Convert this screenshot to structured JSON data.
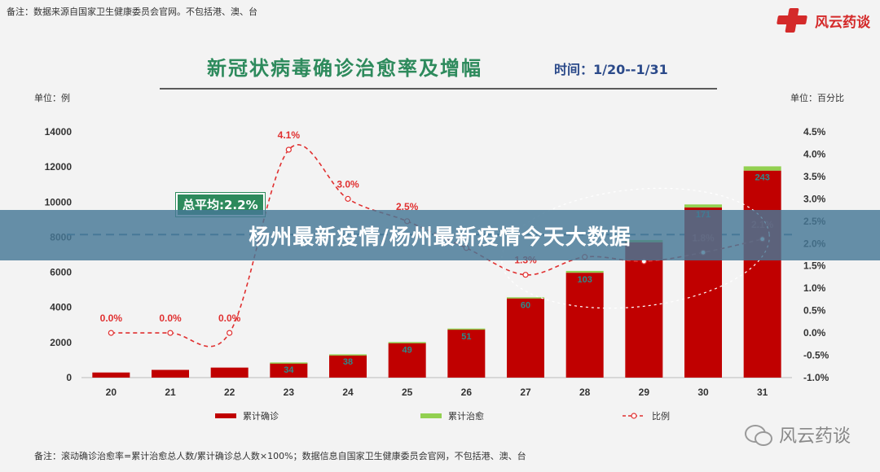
{
  "note_top": "备注：数据来源自国家卫生健康委员会官网。不包括港、澳、台",
  "brand": {
    "text": "风云药谈"
  },
  "title": "新冠状病毒确诊治愈率及增幅",
  "time_label": "时间：1/20--1/31",
  "unit_left": "单位：例",
  "unit_right": "单位：百分比",
  "average_label": "总平均:2.2%",
  "banner": "杨州最新疫情/杨州最新疫情今天大数据",
  "legend": {
    "confirmed": "累计确诊",
    "cured": "累计治愈",
    "ratio": "比例"
  },
  "note_bottom": "备注：滚动确诊治愈率=累计治愈总人数/累计确诊总人数×100%；数据信息自国家卫生健康委员会官网，不包括港、澳、台",
  "watermark": "风云药谈",
  "colors": {
    "confirmed": "#c00000",
    "cured": "#92d050",
    "ratio": "#e03030",
    "cured_label": "#2d8a8a",
    "title": "#2d8a5c"
  },
  "chart_data": {
    "type": "bar",
    "categories": [
      "20",
      "21",
      "22",
      "23",
      "24",
      "25",
      "26",
      "27",
      "28",
      "29",
      "30",
      "31"
    ],
    "series": [
      {
        "name": "累计确诊",
        "type": "bar",
        "values": [
          291,
          440,
          571,
          830,
          1287,
          1975,
          2744,
          4515,
          5974,
          7711,
          9692,
          11791
        ]
      },
      {
        "name": "累计治愈",
        "type": "bar",
        "values": [
          0,
          0,
          0,
          34,
          38,
          49,
          51,
          60,
          103,
          124,
          171,
          243
        ]
      },
      {
        "name": "比例",
        "type": "line",
        "axis": "right",
        "values": [
          0.0,
          0.0,
          0.0,
          4.1,
          3.0,
          2.5,
          1.9,
          1.3,
          1.7,
          1.6,
          1.8,
          2.1
        ]
      }
    ],
    "bar_labels": [
      "",
      "",
      "",
      "34",
      "38",
      "49",
      "51",
      "60",
      "103",
      "",
      "171",
      "243"
    ],
    "line_labels": [
      "0.0%",
      "0.0%",
      "0.0%",
      "4.1%",
      "3.0%",
      "2.5%",
      "",
      "1.3%",
      "",
      "",
      "1.8%",
      "2.1%"
    ],
    "y_left": {
      "min": 0,
      "max": 14000,
      "ticks": [
        "0",
        "2000",
        "4000",
        "6000",
        "8000",
        "10000",
        "12000",
        "14000"
      ]
    },
    "y_right": {
      "min": -1.0,
      "max": 4.5,
      "ticks": [
        "-1.0%",
        "-0.5%",
        "0.0%",
        "0.5%",
        "1.0%",
        "1.5%",
        "2.0%",
        "2.5%",
        "3.0%",
        "3.5%",
        "4.0%",
        "4.5%"
      ]
    },
    "average": 2.2,
    "grid": false
  }
}
